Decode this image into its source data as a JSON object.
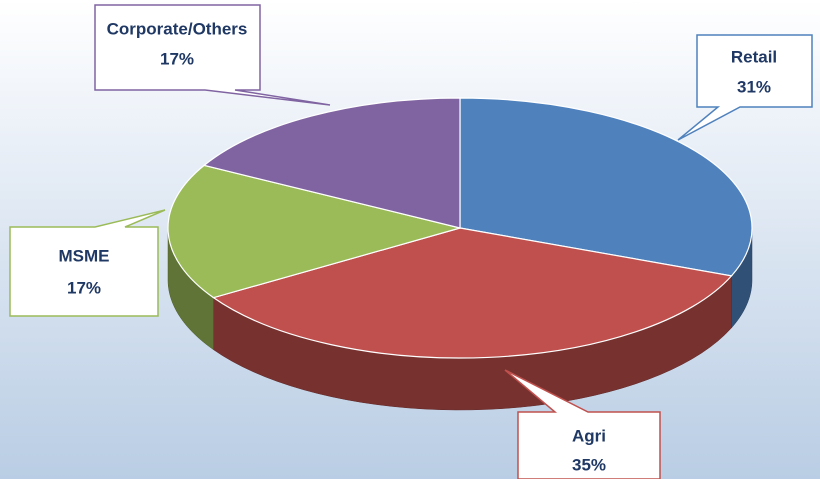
{
  "chart_data": {
    "type": "pie",
    "categories": [
      "Retail",
      "Agri",
      "MSME",
      "Corporate/Others"
    ],
    "values": [
      31,
      35,
      17,
      17
    ],
    "value_labels": [
      "31%",
      "35%",
      "17%",
      "17%"
    ],
    "colors": [
      "#4f81bd",
      "#c0504d",
      "#9bbb59",
      "#8064a2"
    ]
  }
}
